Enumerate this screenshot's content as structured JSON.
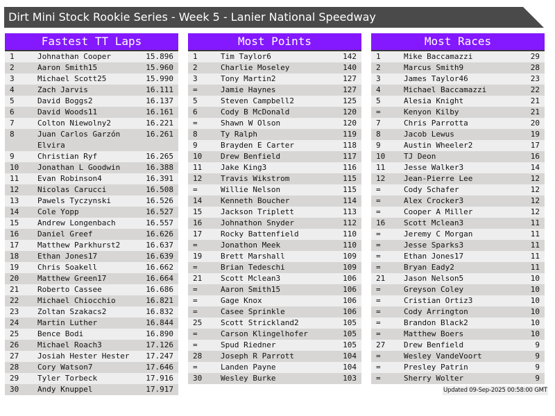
{
  "title": "Dirt Mini Stock Rookie Series - Week 5 - Lanier National Speedway",
  "colors": {
    "header": "#8418ff",
    "titlebar": "#4a4a4a",
    "row_light": "#eeeeee",
    "row_dark": "#d7d6d5"
  },
  "panels": [
    {
      "title": "Fastest TT Laps",
      "rows": [
        [
          "1",
          "Johnathan Cooper",
          "15.896"
        ],
        [
          "2",
          "Aaron Smith15",
          "15.960"
        ],
        [
          "3",
          "Michael Scott25",
          "15.990"
        ],
        [
          "4",
          "Zach Jarvis",
          "16.111"
        ],
        [
          "5",
          "David Boggs2",
          "16.137"
        ],
        [
          "6",
          "David Woods11",
          "16.161"
        ],
        [
          "7",
          "Colton Niewolny2",
          "16.221"
        ],
        [
          "8",
          "Juan Carlos Garzón Elvira",
          "16.261"
        ],
        [
          "9",
          "Christian Ryf",
          "16.265"
        ],
        [
          "10",
          "Jonathan L Goodwin",
          "16.388"
        ],
        [
          "11",
          "Evan Robinson4",
          "16.391"
        ],
        [
          "12",
          "Nicolas Carucci",
          "16.508"
        ],
        [
          "13",
          "Pawels Tyczynski",
          "16.526"
        ],
        [
          "14",
          "Cole Yopp",
          "16.527"
        ],
        [
          "15",
          "Andrew Longenbach",
          "16.557"
        ],
        [
          "16",
          "Daniel Greef",
          "16.626"
        ],
        [
          "17",
          "Matthew Parkhurst2",
          "16.637"
        ],
        [
          "18",
          "Ethan Jones17",
          "16.639"
        ],
        [
          "19",
          "Chris Soakell",
          "16.662"
        ],
        [
          "20",
          "Matthew Green17",
          "16.664"
        ],
        [
          "21",
          "Roberto Cassee",
          "16.686"
        ],
        [
          "22",
          "Michael Chiocchio",
          "16.821"
        ],
        [
          "23",
          "Zoltan Szakacs2",
          "16.832"
        ],
        [
          "24",
          "Martin Luther",
          "16.844"
        ],
        [
          "25",
          "Bence Bodi",
          "16.890"
        ],
        [
          "26",
          "Michael Roach3",
          "17.126"
        ],
        [
          "27",
          "Josiah Hester Hester",
          "17.247"
        ],
        [
          "28",
          "Cory Watson7",
          "17.646"
        ],
        [
          "29",
          "Tyler Torbeck",
          "17.916"
        ],
        [
          "30",
          "Andy Knuppel",
          "17.917"
        ]
      ]
    },
    {
      "title": "Most Points",
      "rows": [
        [
          "1",
          "Tim Taylor6",
          "142"
        ],
        [
          "2",
          "Charlie Moseley",
          "140"
        ],
        [
          "3",
          "Tony Martin2",
          "127"
        ],
        [
          "=",
          "Jamie Haynes",
          "127"
        ],
        [
          "5",
          "Steven Campbell2",
          "125"
        ],
        [
          "6",
          "Cody B McDonald",
          "120"
        ],
        [
          "=",
          "Shawn W Olson",
          "120"
        ],
        [
          "8",
          "Ty Ralph",
          "119"
        ],
        [
          "9",
          "Brayden E Carter",
          "118"
        ],
        [
          "10",
          "Drew Benfield",
          "117"
        ],
        [
          "11",
          "Jake King3",
          "116"
        ],
        [
          "12",
          "Travis Wikstrom",
          "115"
        ],
        [
          "=",
          "Willie Nelson",
          "115"
        ],
        [
          "14",
          "Kenneth Boucher",
          "114"
        ],
        [
          "15",
          "Jackson Triplett",
          "113"
        ],
        [
          "16",
          "Johnathon Snyder",
          "112"
        ],
        [
          "17",
          "Rocky Battenfield",
          "110"
        ],
        [
          "=",
          "Jonathon Meek",
          "110"
        ],
        [
          "19",
          "Brett Marshall",
          "109"
        ],
        [
          "=",
          "Brian Tedeschi",
          "109"
        ],
        [
          "21",
          "Scott Mclean3",
          "106"
        ],
        [
          "=",
          "Aaron Smith15",
          "106"
        ],
        [
          "=",
          "Gage Knox",
          "106"
        ],
        [
          "=",
          "Casee Sprinkle",
          "106"
        ],
        [
          "25",
          "Scott Strickland2",
          "105"
        ],
        [
          "=",
          "Carson Klingelhofer",
          "105"
        ],
        [
          "=",
          "Spud Riedner",
          "105"
        ],
        [
          "28",
          "Joseph R Parrott",
          "104"
        ],
        [
          "=",
          "Landen Payne",
          "104"
        ],
        [
          "30",
          "Wesley Burke",
          "103"
        ]
      ]
    },
    {
      "title": "Most Races",
      "rows": [
        [
          "1",
          "Mike Baccamazzi",
          "29"
        ],
        [
          "2",
          "Marcus Smith9",
          "28"
        ],
        [
          "3",
          "James Taylor46",
          "23"
        ],
        [
          "4",
          "Michael Baccamazzi",
          "22"
        ],
        [
          "5",
          "Alesia Knight",
          "21"
        ],
        [
          "=",
          "Kenyon Kilby",
          "21"
        ],
        [
          "7",
          "Chris Parrotta",
          "20"
        ],
        [
          "8",
          "Jacob Lewus",
          "19"
        ],
        [
          "9",
          "Austin Wheeler2",
          "17"
        ],
        [
          "10",
          "TJ Deon",
          "16"
        ],
        [
          "11",
          "Jesse Walker3",
          "14"
        ],
        [
          "12",
          "Jean-Pierre Lee",
          "12"
        ],
        [
          "=",
          "Cody Schafer",
          "12"
        ],
        [
          "=",
          "Alex Crocker3",
          "12"
        ],
        [
          "=",
          "Cooper A Miller",
          "12"
        ],
        [
          "16",
          "Scott Mclean3",
          "11"
        ],
        [
          "=",
          "Jeremy C Morgan",
          "11"
        ],
        [
          "=",
          "Jesse Sparks3",
          "11"
        ],
        [
          "=",
          "Ethan Jones17",
          "11"
        ],
        [
          "=",
          "Bryan Eady2",
          "11"
        ],
        [
          "21",
          "Jason Nelson5",
          "10"
        ],
        [
          "=",
          "Greyson Coley",
          "10"
        ],
        [
          "=",
          "Cristian Ortiz3",
          "10"
        ],
        [
          "=",
          "Cody Arrington",
          "10"
        ],
        [
          "=",
          "Brandon Black2",
          "10"
        ],
        [
          "=",
          "Matthew Boers",
          "10"
        ],
        [
          "27",
          "Drew Benfield",
          "9"
        ],
        [
          "=",
          "Wesley VandeVoort",
          "9"
        ],
        [
          "=",
          "Presley Patrin",
          "9"
        ],
        [
          "=",
          "Sherry Wolter",
          "9"
        ]
      ]
    }
  ],
  "updated": "Updated 09-Sep-2025 00:58:00 GMT"
}
